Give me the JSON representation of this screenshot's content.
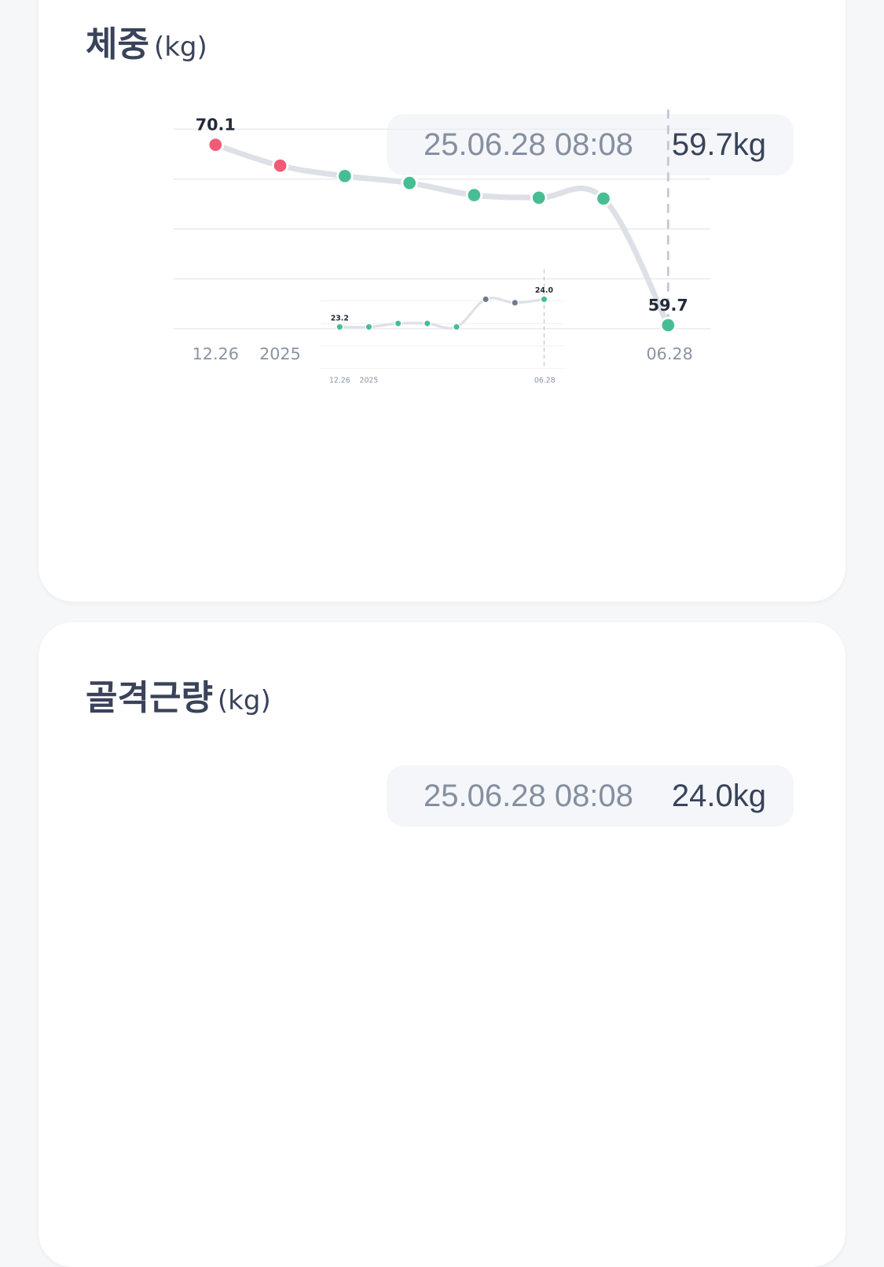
{
  "colors": {
    "above_range": "#f25b75",
    "normal": "#47bd93",
    "below_range": "#6e7a8f",
    "line": "#dde1e7",
    "grid": "#eceef1",
    "crosshair": "#c4c9d1"
  },
  "chart_data": [
    {
      "type": "line",
      "title": "체중",
      "unit": "(kg)",
      "x_tick_labels": [
        "12.26",
        "2025",
        "06.28"
      ],
      "values": [
        70.1,
        68.9,
        68.3,
        67.9,
        67.2,
        67.05,
        67.0,
        59.7
      ],
      "point_status": [
        "above_range",
        "above_range",
        "normal",
        "normal",
        "normal",
        "normal",
        "normal",
        "normal"
      ],
      "data_labels": [
        {
          "index": 0,
          "text": "70.1"
        },
        {
          "index": 7,
          "text": "59.7"
        }
      ],
      "ylim": [
        59.5,
        71.0
      ],
      "grid": true,
      "selected_index": 7,
      "tooltip": {
        "date": "25.06.28 08:08",
        "value": "59.7kg"
      }
    },
    {
      "type": "line",
      "title": "골격근량",
      "unit": "(kg)",
      "x_tick_labels": [
        "12.26",
        "2025",
        "06.28"
      ],
      "values": [
        23.2,
        23.2,
        23.3,
        23.3,
        23.2,
        24.0,
        23.9,
        24.0
      ],
      "point_status": [
        "normal",
        "normal",
        "normal",
        "normal",
        "normal",
        "below_range",
        "below_range",
        "normal"
      ],
      "data_labels": [
        {
          "index": 0,
          "text": "23.2"
        },
        {
          "index": 7,
          "text": "24.0"
        }
      ],
      "ylim": [
        22.0,
        24.6
      ],
      "grid": true,
      "selected_index": 7,
      "tooltip": {
        "date": "25.06.28 08:08",
        "value": "24.0kg"
      }
    }
  ]
}
